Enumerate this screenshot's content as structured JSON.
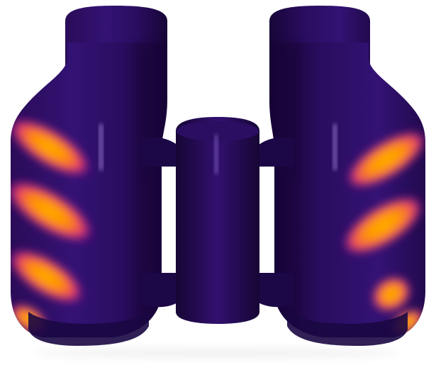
{
  "scene": {
    "subject": "binoculars-3d-render",
    "background_color": "#ffffff",
    "body_color": "#2a0d5c",
    "body_shadow_color": "#12052e",
    "glow_colors": [
      "#ffb000",
      "#ff8a00",
      "#ff4d6a",
      "#b400a8"
    ],
    "stripe_angle_degrees": -35,
    "left_barrel_stripes": 4,
    "right_barrel_stripes": 4
  }
}
